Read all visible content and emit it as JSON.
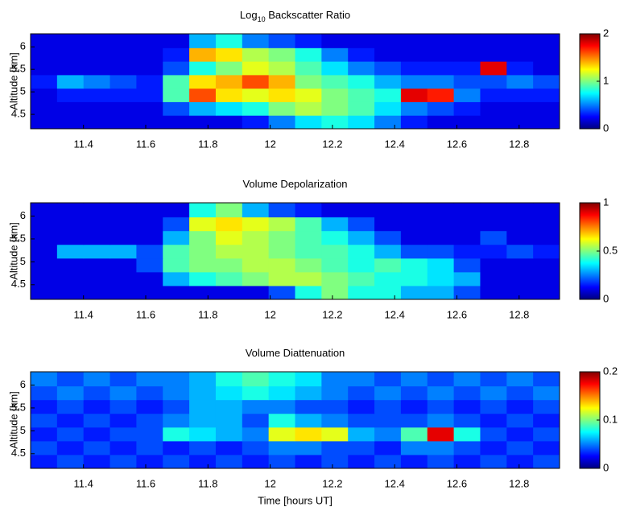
{
  "chart_data": [
    {
      "type": "heatmap",
      "title": [
        "Log",
        "10",
        " Backscatter Ratio"
      ],
      "ylabel": "Altitude [km]",
      "xlim": [
        11.23,
        12.93
      ],
      "xticks": [
        11.4,
        11.6,
        11.8,
        12,
        12.2,
        12.4,
        12.6,
        12.8
      ],
      "ylim": [
        4.18,
        6.29
      ],
      "yticks": [
        4.5,
        5,
        5.5,
        6
      ],
      "clim": [
        0,
        2
      ],
      "cticks": [
        0,
        1,
        2
      ],
      "colormap": "jet",
      "x": [
        11.27,
        11.36,
        11.44,
        11.53,
        11.61,
        11.7,
        11.78,
        11.87,
        11.95,
        12.04,
        12.12,
        12.21,
        12.29,
        12.38,
        12.46,
        12.55,
        12.63,
        12.72,
        12.8,
        12.89
      ],
      "y": [
        4.33,
        4.63,
        4.93,
        5.23,
        5.53,
        5.83,
        6.13
      ],
      "z": [
        [
          0.2,
          0.2,
          0.2,
          0.2,
          0.2,
          0.2,
          0.2,
          0.2,
          0.3,
          0.5,
          0.7,
          0.8,
          0.7,
          0.5,
          0.3,
          0.2,
          0.2,
          0.2,
          0.2,
          0.2
        ],
        [
          0.2,
          0.2,
          0.2,
          0.2,
          0.2,
          0.4,
          0.6,
          0.7,
          0.8,
          1.0,
          1.1,
          1.0,
          0.9,
          0.7,
          0.5,
          0.4,
          0.3,
          0.2,
          0.2,
          0.2
        ],
        [
          0.2,
          0.3,
          0.3,
          0.3,
          0.3,
          0.9,
          1.6,
          1.3,
          1.2,
          1.3,
          1.2,
          1.0,
          0.9,
          0.8,
          1.8,
          1.7,
          0.5,
          0.3,
          0.3,
          0.3
        ],
        [
          0.3,
          0.6,
          0.5,
          0.4,
          0.3,
          0.9,
          1.3,
          1.4,
          1.6,
          1.4,
          1.0,
          0.9,
          0.8,
          0.6,
          0.5,
          0.5,
          0.4,
          0.4,
          0.5,
          0.4
        ],
        [
          0.2,
          0.2,
          0.2,
          0.2,
          0.2,
          0.4,
          0.8,
          1.0,
          1.2,
          1.1,
          0.9,
          0.7,
          0.5,
          0.4,
          0.3,
          0.3,
          0.3,
          1.8,
          0.3,
          0.2
        ],
        [
          0.2,
          0.2,
          0.2,
          0.2,
          0.2,
          0.3,
          1.4,
          1.3,
          1.1,
          1.0,
          0.8,
          0.5,
          0.3,
          0.2,
          0.2,
          0.2,
          0.2,
          0.2,
          0.2,
          0.2
        ],
        [
          0.2,
          0.2,
          0.2,
          0.2,
          0.2,
          0.2,
          0.6,
          0.8,
          0.5,
          0.4,
          0.3,
          0.2,
          0.2,
          0.2,
          0.2,
          0.2,
          0.2,
          0.2,
          0.2,
          0.2
        ]
      ]
    },
    {
      "type": "heatmap",
      "title": [
        "Volume Depolarization"
      ],
      "ylabel": "Altitude [km]",
      "xlim": [
        11.23,
        12.93
      ],
      "xticks": [
        11.4,
        11.6,
        11.8,
        12,
        12.2,
        12.4,
        12.6,
        12.8
      ],
      "ylim": [
        4.18,
        6.29
      ],
      "yticks": [
        4.5,
        5,
        5.5,
        6
      ],
      "clim": [
        0,
        1
      ],
      "cticks": [
        0,
        0.5,
        1
      ],
      "colormap": "jet",
      "x": [
        11.27,
        11.36,
        11.44,
        11.53,
        11.61,
        11.7,
        11.78,
        11.87,
        11.95,
        12.04,
        12.12,
        12.21,
        12.29,
        12.38,
        12.46,
        12.55,
        12.63,
        12.72,
        12.8,
        12.89
      ],
      "y": [
        4.33,
        4.63,
        4.93,
        5.23,
        5.53,
        5.83,
        6.13
      ],
      "z": [
        [
          0.1,
          0.1,
          0.1,
          0.1,
          0.1,
          0.1,
          0.1,
          0.1,
          0.1,
          0.2,
          0.4,
          0.5,
          0.4,
          0.4,
          0.3,
          0.3,
          0.2,
          0.1,
          0.1,
          0.1
        ],
        [
          0.1,
          0.1,
          0.1,
          0.1,
          0.1,
          0.3,
          0.4,
          0.45,
          0.5,
          0.55,
          0.55,
          0.5,
          0.45,
          0.4,
          0.4,
          0.35,
          0.3,
          0.1,
          0.1,
          0.1
        ],
        [
          0.1,
          0.1,
          0.1,
          0.1,
          0.2,
          0.45,
          0.5,
          0.5,
          0.55,
          0.55,
          0.5,
          0.45,
          0.4,
          0.45,
          0.4,
          0.35,
          0.2,
          0.1,
          0.1,
          0.1
        ],
        [
          0.1,
          0.3,
          0.3,
          0.3,
          0.2,
          0.45,
          0.5,
          0.55,
          0.55,
          0.5,
          0.45,
          0.45,
          0.4,
          0.3,
          0.2,
          0.2,
          0.15,
          0.15,
          0.2,
          0.15
        ],
        [
          0.1,
          0.1,
          0.1,
          0.1,
          0.1,
          0.3,
          0.5,
          0.6,
          0.55,
          0.5,
          0.45,
          0.4,
          0.3,
          0.2,
          0.1,
          0.1,
          0.1,
          0.2,
          0.1,
          0.1
        ],
        [
          0.1,
          0.1,
          0.1,
          0.1,
          0.1,
          0.2,
          0.6,
          0.65,
          0.6,
          0.55,
          0.45,
          0.3,
          0.2,
          0.1,
          0.1,
          0.1,
          0.1,
          0.1,
          0.1,
          0.1
        ],
        [
          0.1,
          0.1,
          0.1,
          0.1,
          0.1,
          0.1,
          0.4,
          0.5,
          0.3,
          0.2,
          0.15,
          0.1,
          0.1,
          0.1,
          0.1,
          0.1,
          0.1,
          0.1,
          0.1,
          0.1
        ]
      ]
    },
    {
      "type": "heatmap",
      "title": [
        "Volume Diattenuation"
      ],
      "ylabel": "Altitude [km]",
      "xlabel": "Time [hours UT]",
      "xlim": [
        11.23,
        12.93
      ],
      "xticks": [
        11.4,
        11.6,
        11.8,
        12,
        12.2,
        12.4,
        12.6,
        12.8
      ],
      "ylim": [
        4.18,
        6.29
      ],
      "yticks": [
        4.5,
        5,
        5.5,
        6
      ],
      "clim": [
        0,
        0.2
      ],
      "cticks": [
        0,
        0.1,
        0.2
      ],
      "colormap": "jet",
      "x": [
        11.27,
        11.36,
        11.44,
        11.53,
        11.61,
        11.7,
        11.78,
        11.87,
        11.95,
        12.04,
        12.12,
        12.21,
        12.29,
        12.38,
        12.46,
        12.55,
        12.63,
        12.72,
        12.8,
        12.89
      ],
      "y": [
        4.33,
        4.63,
        4.93,
        5.23,
        5.53,
        5.83,
        6.13
      ],
      "z": [
        [
          0.03,
          0.04,
          0.03,
          0.04,
          0.03,
          0.04,
          0.03,
          0.04,
          0.03,
          0.04,
          0.03,
          0.04,
          0.03,
          0.04,
          0.03,
          0.04,
          0.03,
          0.04,
          0.03,
          0.04
        ],
        [
          0.04,
          0.03,
          0.04,
          0.03,
          0.04,
          0.03,
          0.04,
          0.03,
          0.04,
          0.05,
          0.05,
          0.04,
          0.04,
          0.03,
          0.05,
          0.05,
          0.04,
          0.03,
          0.04,
          0.03
        ],
        [
          0.03,
          0.04,
          0.03,
          0.04,
          0.04,
          0.08,
          0.07,
          0.06,
          0.05,
          0.12,
          0.13,
          0.12,
          0.06,
          0.05,
          0.09,
          0.18,
          0.08,
          0.04,
          0.03,
          0.04
        ],
        [
          0.04,
          0.03,
          0.04,
          0.03,
          0.04,
          0.05,
          0.06,
          0.06,
          0.04,
          0.08,
          0.06,
          0.05,
          0.04,
          0.04,
          0.04,
          0.05,
          0.04,
          0.03,
          0.04,
          0.03
        ],
        [
          0.03,
          0.04,
          0.03,
          0.04,
          0.03,
          0.04,
          0.06,
          0.06,
          0.05,
          0.05,
          0.04,
          0.04,
          0.03,
          0.04,
          0.03,
          0.04,
          0.03,
          0.04,
          0.03,
          0.04
        ],
        [
          0.04,
          0.05,
          0.04,
          0.05,
          0.04,
          0.05,
          0.06,
          0.07,
          0.08,
          0.07,
          0.06,
          0.05,
          0.04,
          0.05,
          0.04,
          0.05,
          0.04,
          0.05,
          0.04,
          0.05
        ],
        [
          0.05,
          0.04,
          0.05,
          0.04,
          0.05,
          0.05,
          0.06,
          0.08,
          0.09,
          0.08,
          0.07,
          0.05,
          0.05,
          0.04,
          0.05,
          0.04,
          0.05,
          0.04,
          0.05,
          0.04
        ]
      ]
    }
  ]
}
